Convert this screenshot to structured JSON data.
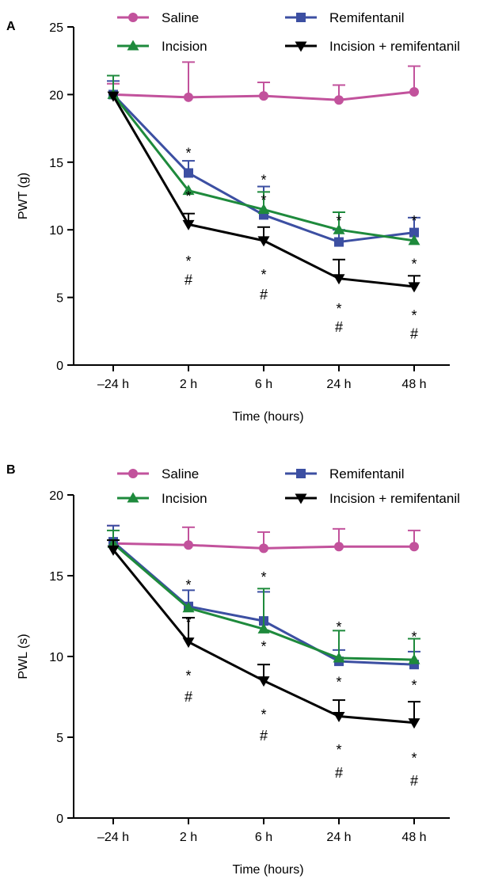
{
  "chart_data": [
    {
      "type": "line",
      "panel_label": "A",
      "xlabel": "Time (hours)",
      "ylabel": "PWT (g)",
      "categories": [
        "–24 h",
        "2 h",
        "6 h",
        "24 h",
        "48 h"
      ],
      "ylim": [
        0,
        25
      ],
      "yticks": [
        0,
        5,
        10,
        15,
        20,
        25
      ],
      "legend_position": "top",
      "series": [
        {
          "name": "Saline",
          "color": "#c2529c",
          "marker": "circle",
          "values": [
            20.0,
            19.8,
            19.9,
            19.6,
            20.2
          ],
          "errors": [
            0.8,
            2.6,
            1.0,
            1.1,
            1.9
          ]
        },
        {
          "name": "Remifentanil",
          "color": "#3c4fa2",
          "marker": "square",
          "values": [
            20.0,
            14.2,
            11.1,
            9.1,
            9.8
          ],
          "errors": [
            1.0,
            0.9,
            2.1,
            0.9,
            1.1
          ]
        },
        {
          "name": "Incision",
          "color": "#1e8a3c",
          "marker": "triangle-up",
          "values": [
            20.0,
            12.9,
            11.5,
            10.0,
            9.2
          ],
          "errors": [
            1.4,
            0.0,
            1.3,
            1.3,
            0.0
          ]
        },
        {
          "name": "Incision + remifentanil",
          "color": "#000000",
          "marker": "triangle-down",
          "values": [
            19.9,
            10.4,
            9.2,
            6.4,
            5.8
          ],
          "errors": [
            0.0,
            0.8,
            1.0,
            1.4,
            0.8
          ]
        }
      ],
      "annotations": [
        {
          "category": "2 h",
          "y": 15.9,
          "text": "*"
        },
        {
          "category": "2 h",
          "y": 12.7,
          "text": "*"
        },
        {
          "category": "2 h",
          "y": 7.9,
          "text": "*"
        },
        {
          "category": "2 h",
          "y": 6.3,
          "text": "#"
        },
        {
          "category": "6 h",
          "y": 13.9,
          "text": "*"
        },
        {
          "category": "6 h",
          "y": 12.4,
          "text": "*"
        },
        {
          "category": "6 h",
          "y": 6.9,
          "text": "*"
        },
        {
          "category": "6 h",
          "y": 5.2,
          "text": "#"
        },
        {
          "category": "24 h",
          "y": 10.9,
          "text": "*"
        },
        {
          "category": "24 h",
          "y": 4.4,
          "text": "*"
        },
        {
          "category": "24 h",
          "y": 2.8,
          "text": "#"
        },
        {
          "category": "48 h",
          "y": 10.9,
          "text": "*"
        },
        {
          "category": "48 h",
          "y": 7.7,
          "text": "*"
        },
        {
          "category": "48 h",
          "y": 3.9,
          "text": "*"
        },
        {
          "category": "48 h",
          "y": 2.3,
          "text": "#"
        }
      ]
    },
    {
      "type": "line",
      "panel_label": "B",
      "xlabel": "Time (hours)",
      "ylabel": "PWL (s)",
      "categories": [
        "–24 h",
        "2 h",
        "6 h",
        "24 h",
        "48 h"
      ],
      "ylim": [
        0,
        20
      ],
      "yticks": [
        0,
        5,
        10,
        15,
        20
      ],
      "legend_position": "top",
      "series": [
        {
          "name": "Saline",
          "color": "#c2529c",
          "marker": "circle",
          "values": [
            17.0,
            16.9,
            16.7,
            16.8,
            16.8
          ],
          "errors": [
            1.1,
            1.1,
            1.0,
            1.1,
            1.0
          ]
        },
        {
          "name": "Remifentanil",
          "color": "#3c4fa2",
          "marker": "square",
          "values": [
            17.1,
            13.1,
            12.2,
            9.7,
            9.5
          ],
          "errors": [
            1.0,
            1.0,
            1.8,
            0.7,
            0.8
          ]
        },
        {
          "name": "Incision",
          "color": "#1e8a3c",
          "marker": "triangle-up",
          "values": [
            17.0,
            13.0,
            11.7,
            9.9,
            9.8
          ],
          "errors": [
            0.8,
            0.0,
            2.5,
            1.7,
            1.3
          ]
        },
        {
          "name": "Incision + remifentanil",
          "color": "#000000",
          "marker": "triangle-down",
          "values": [
            16.6,
            10.9,
            8.5,
            6.3,
            5.9
          ],
          "errors": [
            0.6,
            1.5,
            1.0,
            1.0,
            1.3
          ]
        }
      ],
      "annotations": [
        {
          "category": "2 h",
          "y": 14.6,
          "text": "*"
        },
        {
          "category": "2 h",
          "y": 12.3,
          "text": "*"
        },
        {
          "category": "2 h",
          "y": 9.0,
          "text": "*"
        },
        {
          "category": "2 h",
          "y": 7.5,
          "text": "#"
        },
        {
          "category": "6 h",
          "y": 15.1,
          "text": "*"
        },
        {
          "category": "6 h",
          "y": 10.8,
          "text": "*"
        },
        {
          "category": "6 h",
          "y": 6.6,
          "text": "*"
        },
        {
          "category": "6 h",
          "y": 5.1,
          "text": "#"
        },
        {
          "category": "24 h",
          "y": 12.0,
          "text": "*"
        },
        {
          "category": "24 h",
          "y": 8.6,
          "text": "*"
        },
        {
          "category": "24 h",
          "y": 4.4,
          "text": "*"
        },
        {
          "category": "24 h",
          "y": 2.8,
          "text": "#"
        },
        {
          "category": "48 h",
          "y": 11.4,
          "text": "*"
        },
        {
          "category": "48 h",
          "y": 8.4,
          "text": "*"
        },
        {
          "category": "48 h",
          "y": 3.9,
          "text": "*"
        },
        {
          "category": "48 h",
          "y": 2.3,
          "text": "#"
        }
      ]
    }
  ]
}
